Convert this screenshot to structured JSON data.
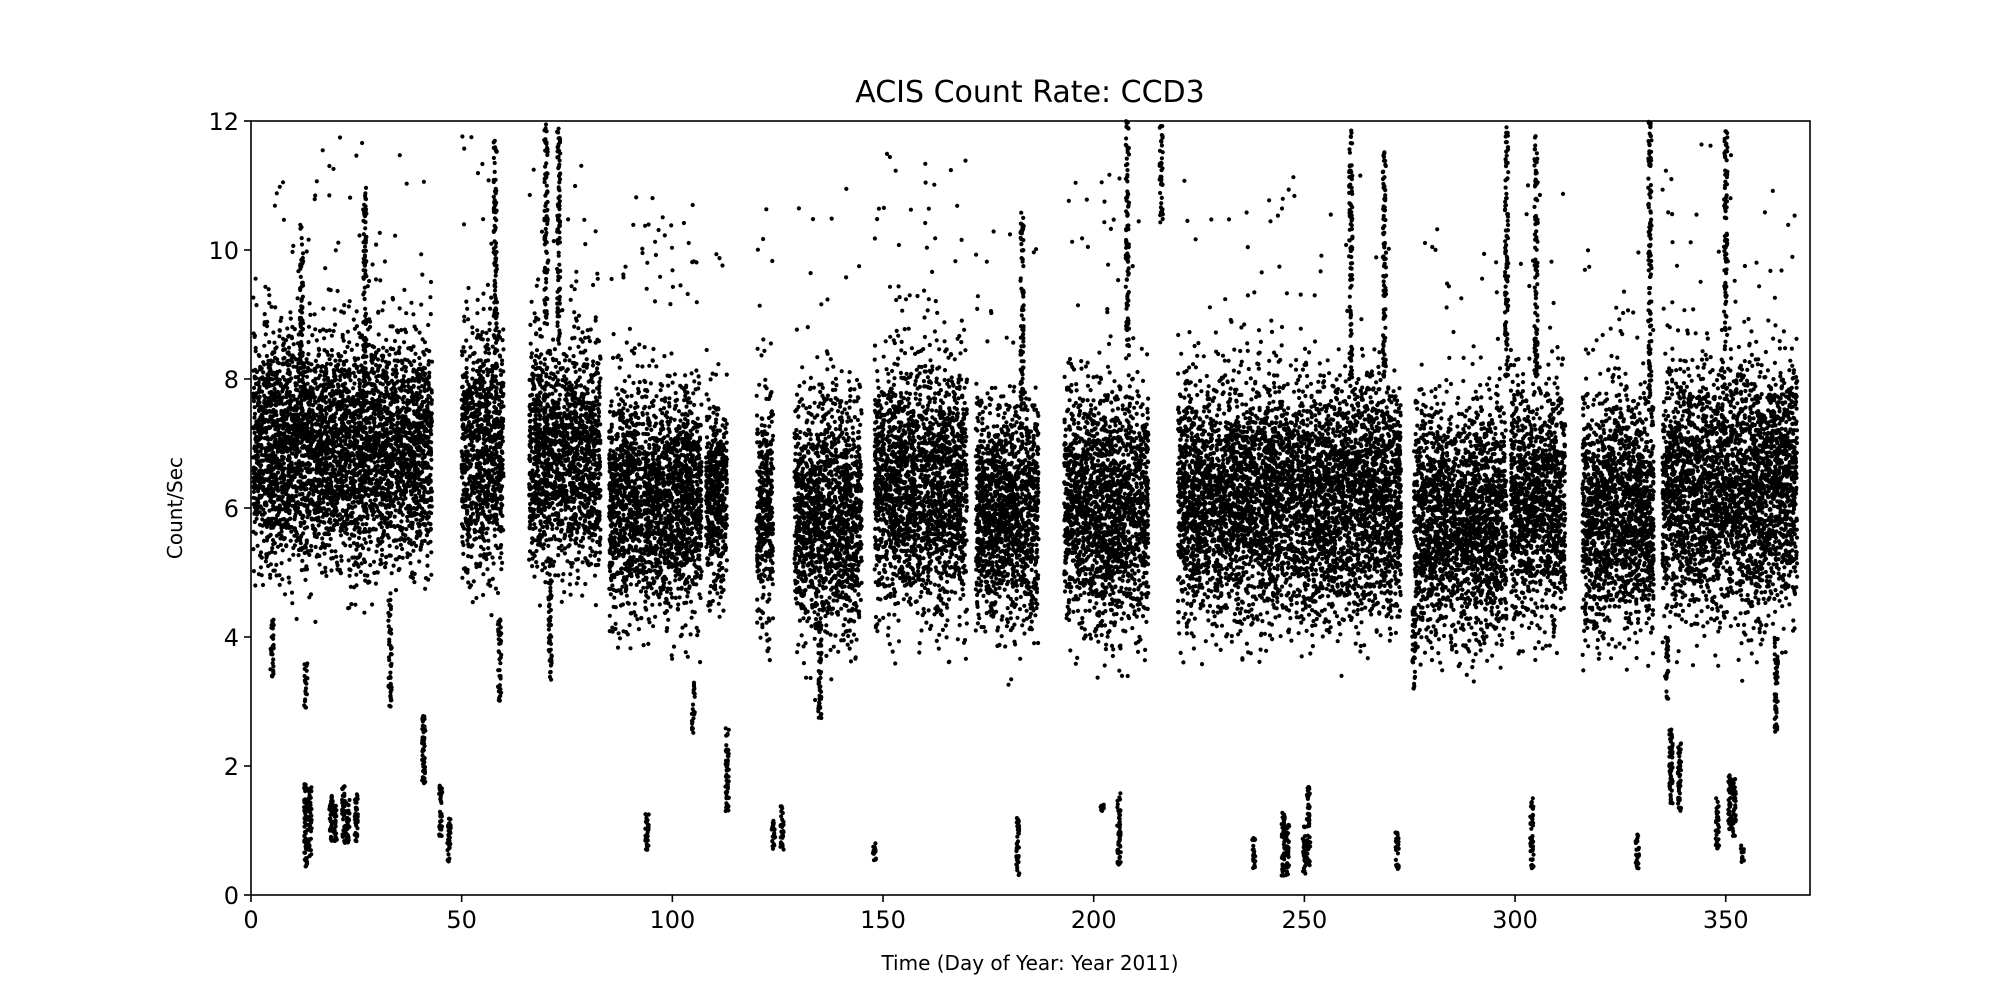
{
  "chart_data": {
    "type": "scatter",
    "title": "ACIS Count Rate: CCD3",
    "xlabel": "Time (Day of Year: Year 2011)",
    "ylabel": "Count/Sec",
    "xlim": [
      0,
      370
    ],
    "ylim": [
      0,
      12
    ],
    "xticks": [
      0,
      50,
      100,
      150,
      200,
      250,
      300,
      350
    ],
    "yticks": [
      0,
      2,
      4,
      6,
      8,
      10,
      12
    ],
    "grid": false,
    "marker_color": "#000000",
    "main_band": {
      "description_segments": [
        {
          "x_start": 0.5,
          "x_end": 43,
          "y_low": 5.4,
          "y_high": 8.6,
          "y_mid": 6.9
        },
        {
          "x_start": 50,
          "x_end": 60,
          "y_low": 5.4,
          "y_high": 8.8,
          "y_mid": 6.9
        },
        {
          "x_start": 66,
          "x_end": 83,
          "y_low": 5.5,
          "y_high": 8.6,
          "y_mid": 6.8
        },
        {
          "x_start": 85,
          "x_end": 107,
          "y_low": 4.9,
          "y_high": 8.0,
          "y_mid": 6.1
        },
        {
          "x_start": 108,
          "x_end": 113,
          "y_low": 5.0,
          "y_high": 7.6,
          "y_mid": 6.2
        },
        {
          "x_start": 120,
          "x_end": 124,
          "y_low": 4.6,
          "y_high": 7.8,
          "y_mid": 5.9
        },
        {
          "x_start": 129,
          "x_end": 145,
          "y_low": 4.5,
          "y_high": 7.8,
          "y_mid": 5.9
        },
        {
          "x_start": 148,
          "x_end": 170,
          "y_low": 4.9,
          "y_high": 8.3,
          "y_mid": 6.3
        },
        {
          "x_start": 172,
          "x_end": 187,
          "y_low": 4.5,
          "y_high": 7.6,
          "y_mid": 5.9
        },
        {
          "x_start": 193,
          "x_end": 213,
          "y_low": 4.4,
          "y_high": 7.8,
          "y_mid": 6.0
        },
        {
          "x_start": 220,
          "x_end": 273,
          "y_low": 4.6,
          "y_high": 7.9,
          "y_mid": 6.1
        },
        {
          "x_start": 276,
          "x_end": 298,
          "y_low": 4.4,
          "y_high": 7.5,
          "y_mid": 5.8
        },
        {
          "x_start": 299,
          "x_end": 312,
          "y_low": 4.7,
          "y_high": 7.9,
          "y_mid": 6.1
        },
        {
          "x_start": 316,
          "x_end": 333,
          "y_low": 4.5,
          "y_high": 7.7,
          "y_mid": 5.9
        },
        {
          "x_start": 335,
          "x_end": 367,
          "y_low": 4.7,
          "y_high": 8.2,
          "y_mid": 6.3
        }
      ]
    },
    "spikes": [
      {
        "x": 12,
        "y_low": 7.0,
        "y_high": 10.4
      },
      {
        "x": 27,
        "y_low": 7.5,
        "y_high": 11.0
      },
      {
        "x": 58,
        "y_low": 8.5,
        "y_high": 11.7
      },
      {
        "x": 70,
        "y_low": 8.8,
        "y_high": 12.0
      },
      {
        "x": 73,
        "y_low": 8.5,
        "y_high": 11.9
      },
      {
        "x": 183,
        "y_low": 7.5,
        "y_high": 10.6
      },
      {
        "x": 208,
        "y_low": 8.5,
        "y_high": 12.0
      },
      {
        "x": 216,
        "y_low": 10.4,
        "y_high": 12.0
      },
      {
        "x": 261,
        "y_low": 8.0,
        "y_high": 12.0
      },
      {
        "x": 269,
        "y_low": 8.0,
        "y_high": 11.6
      },
      {
        "x": 298,
        "y_low": 8.0,
        "y_high": 12.0
      },
      {
        "x": 305,
        "y_low": 8.0,
        "y_high": 11.8
      },
      {
        "x": 332,
        "y_low": 7.5,
        "y_high": 12.0
      },
      {
        "x": 350,
        "y_low": 8.6,
        "y_high": 11.9
      }
    ],
    "dips": [
      {
        "x": 5,
        "y_low": 3.3,
        "y_high": 4.3
      },
      {
        "x": 13,
        "y_low": 2.9,
        "y_high": 3.6
      },
      {
        "x": 33,
        "y_low": 2.9,
        "y_high": 4.6
      },
      {
        "x": 59,
        "y_low": 2.9,
        "y_high": 4.3
      },
      {
        "x": 71,
        "y_low": 3.3,
        "y_high": 5.0
      },
      {
        "x": 105,
        "y_low": 2.5,
        "y_high": 3.3
      },
      {
        "x": 135,
        "y_low": 2.7,
        "y_high": 4.3
      },
      {
        "x": 276,
        "y_low": 3.2,
        "y_high": 4.5
      },
      {
        "x": 336,
        "y_low": 3.0,
        "y_high": 4.0
      },
      {
        "x": 362,
        "y_low": 2.5,
        "y_high": 4.0
      }
    ],
    "low_clusters": [
      {
        "x": 13,
        "y_low": 0.4,
        "y_high": 1.8
      },
      {
        "x": 14,
        "y_low": 0.6,
        "y_high": 1.7
      },
      {
        "x": 19,
        "y_low": 0.8,
        "y_high": 1.6
      },
      {
        "x": 20,
        "y_low": 0.8,
        "y_high": 1.4
      },
      {
        "x": 22,
        "y_low": 0.8,
        "y_high": 1.7
      },
      {
        "x": 23,
        "y_low": 0.8,
        "y_high": 1.5
      },
      {
        "x": 25,
        "y_low": 0.8,
        "y_high": 1.6
      },
      {
        "x": 41,
        "y_low": 1.7,
        "y_high": 2.8
      },
      {
        "x": 45,
        "y_low": 0.9,
        "y_high": 1.7
      },
      {
        "x": 47,
        "y_low": 0.5,
        "y_high": 1.2
      },
      {
        "x": 94,
        "y_low": 0.7,
        "y_high": 1.3
      },
      {
        "x": 113,
        "y_low": 1.3,
        "y_high": 2.6
      },
      {
        "x": 124,
        "y_low": 0.7,
        "y_high": 1.2
      },
      {
        "x": 126,
        "y_low": 0.7,
        "y_high": 1.4
      },
      {
        "x": 148,
        "y_low": 0.5,
        "y_high": 0.8
      },
      {
        "x": 182,
        "y_low": 0.3,
        "y_high": 1.2
      },
      {
        "x": 202,
        "y_low": 1.3,
        "y_high": 1.4
      },
      {
        "x": 206,
        "y_low": 0.4,
        "y_high": 1.6
      },
      {
        "x": 238,
        "y_low": 0.4,
        "y_high": 0.9
      },
      {
        "x": 245,
        "y_low": 0.3,
        "y_high": 1.3
      },
      {
        "x": 246,
        "y_low": 0.3,
        "y_high": 1.1
      },
      {
        "x": 250,
        "y_low": 0.3,
        "y_high": 1.1
      },
      {
        "x": 251,
        "y_low": 0.4,
        "y_high": 1.7
      },
      {
        "x": 272,
        "y_low": 0.4,
        "y_high": 1.0
      },
      {
        "x": 304,
        "y_low": 0.4,
        "y_high": 1.5
      },
      {
        "x": 329,
        "y_low": 0.4,
        "y_high": 1.0
      },
      {
        "x": 337,
        "y_low": 1.4,
        "y_high": 2.6
      },
      {
        "x": 339,
        "y_low": 1.3,
        "y_high": 2.4
      },
      {
        "x": 348,
        "y_low": 0.7,
        "y_high": 1.5
      },
      {
        "x": 351,
        "y_low": 1.0,
        "y_high": 1.9
      },
      {
        "x": 352,
        "y_low": 0.9,
        "y_high": 1.8
      },
      {
        "x": 354,
        "y_low": 0.5,
        "y_high": 0.8
      }
    ]
  }
}
